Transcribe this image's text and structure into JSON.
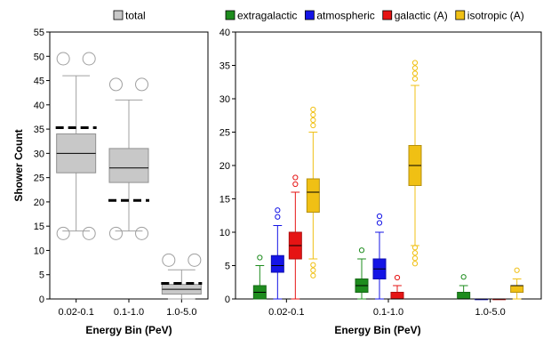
{
  "chart_data": [
    {
      "type": "box",
      "ylabel": "Shower Count",
      "xlabel": "Energy Bin (PeV)",
      "categories": [
        "0.02-0.1",
        "0.1-1.0",
        "1.0-5.0"
      ],
      "ylim": [
        0,
        55
      ],
      "yticks": [
        0,
        5,
        10,
        15,
        20,
        25,
        30,
        35,
        40,
        45,
        50,
        55
      ],
      "legend_position": "top",
      "series": [
        {
          "name": "total",
          "color": "#c8c8c8",
          "boxes": [
            {
              "whisker_low": 14,
              "q1": 26,
              "median": 30,
              "q3": 34,
              "whisker_high": 46,
              "outliers": [
                13.5,
                49.5
              ],
              "mark": 35.3
            },
            {
              "whisker_low": 14,
              "q1": 24,
              "median": 27,
              "q3": 31,
              "whisker_high": 41,
              "outliers": [
                13.5,
                44.2
              ],
              "mark": 20.3
            },
            {
              "whisker_low": 0,
              "q1": 1,
              "median": 2,
              "q3": 3,
              "whisker_high": 6,
              "outliers": [
                8
              ],
              "mark": 3.2
            }
          ]
        }
      ]
    },
    {
      "type": "box",
      "ylabel": "",
      "xlabel": "Energy Bin (PeV)",
      "categories": [
        "0.02-0.1",
        "0.1-1.0",
        "1.0-5.0"
      ],
      "ylim": [
        0,
        40
      ],
      "yticks": [
        0,
        5,
        10,
        15,
        20,
        25,
        30,
        35,
        40
      ],
      "legend_position": "top",
      "series": [
        {
          "name": "extragalactic",
          "color": "#1e8c1e",
          "boxes": [
            {
              "whisker_low": 0,
              "q1": 0,
              "median": 1,
              "q3": 2,
              "whisker_high": 5,
              "outliers": [
                6.2
              ]
            },
            {
              "whisker_low": 0,
              "q1": 1,
              "median": 2,
              "q3": 3,
              "whisker_high": 6,
              "outliers": [
                7.3
              ]
            },
            {
              "whisker_low": 0,
              "q1": 0,
              "median": 0,
              "q3": 1,
              "whisker_high": 2,
              "outliers": [
                3.3
              ]
            }
          ]
        },
        {
          "name": "atmospheric",
          "color": "#1414e6",
          "boxes": [
            {
              "whisker_low": 0,
              "q1": 4,
              "median": 5,
              "q3": 6.5,
              "whisker_high": 11,
              "outliers": [
                12.3,
                13.3
              ]
            },
            {
              "whisker_low": 0,
              "q1": 3,
              "median": 4.5,
              "q3": 6,
              "whisker_high": 10,
              "outliers": [
                11.4,
                12.4
              ]
            },
            {
              "whisker_low": 0,
              "q1": 0,
              "median": 0,
              "q3": 0,
              "whisker_high": 0,
              "outliers": []
            }
          ]
        },
        {
          "name": "galactic (A)",
          "color": "#e61414",
          "boxes": [
            {
              "whisker_low": 0,
              "q1": 6,
              "median": 8,
              "q3": 10,
              "whisker_high": 16,
              "outliers": [
                17.2,
                18.2
              ]
            },
            {
              "whisker_low": 0,
              "q1": 0,
              "median": 0,
              "q3": 1,
              "whisker_high": 2,
              "outliers": [
                3.2
              ]
            },
            {
              "whisker_low": 0,
              "q1": 0,
              "median": 0,
              "q3": 0,
              "whisker_high": 0,
              "outliers": []
            }
          ]
        },
        {
          "name": "isotropic (A)",
          "color": "#f0c014",
          "boxes": [
            {
              "whisker_low": 6,
              "q1": 13,
              "median": 16,
              "q3": 18,
              "whisker_high": 25,
              "outliers": [
                3.5,
                4.3,
                5.1,
                26,
                26.8,
                27.6,
                28.4
              ]
            },
            {
              "whisker_low": 8,
              "q1": 17,
              "median": 20,
              "q3": 23,
              "whisker_high": 32,
              "outliers": [
                5.3,
                6.1,
                6.9,
                7.7,
                33,
                33.8,
                34.6,
                35.4
              ]
            },
            {
              "whisker_low": 0,
              "q1": 1,
              "median": 2,
              "q3": 2,
              "whisker_high": 3,
              "outliers": [
                4.3
              ]
            }
          ]
        }
      ]
    }
  ]
}
